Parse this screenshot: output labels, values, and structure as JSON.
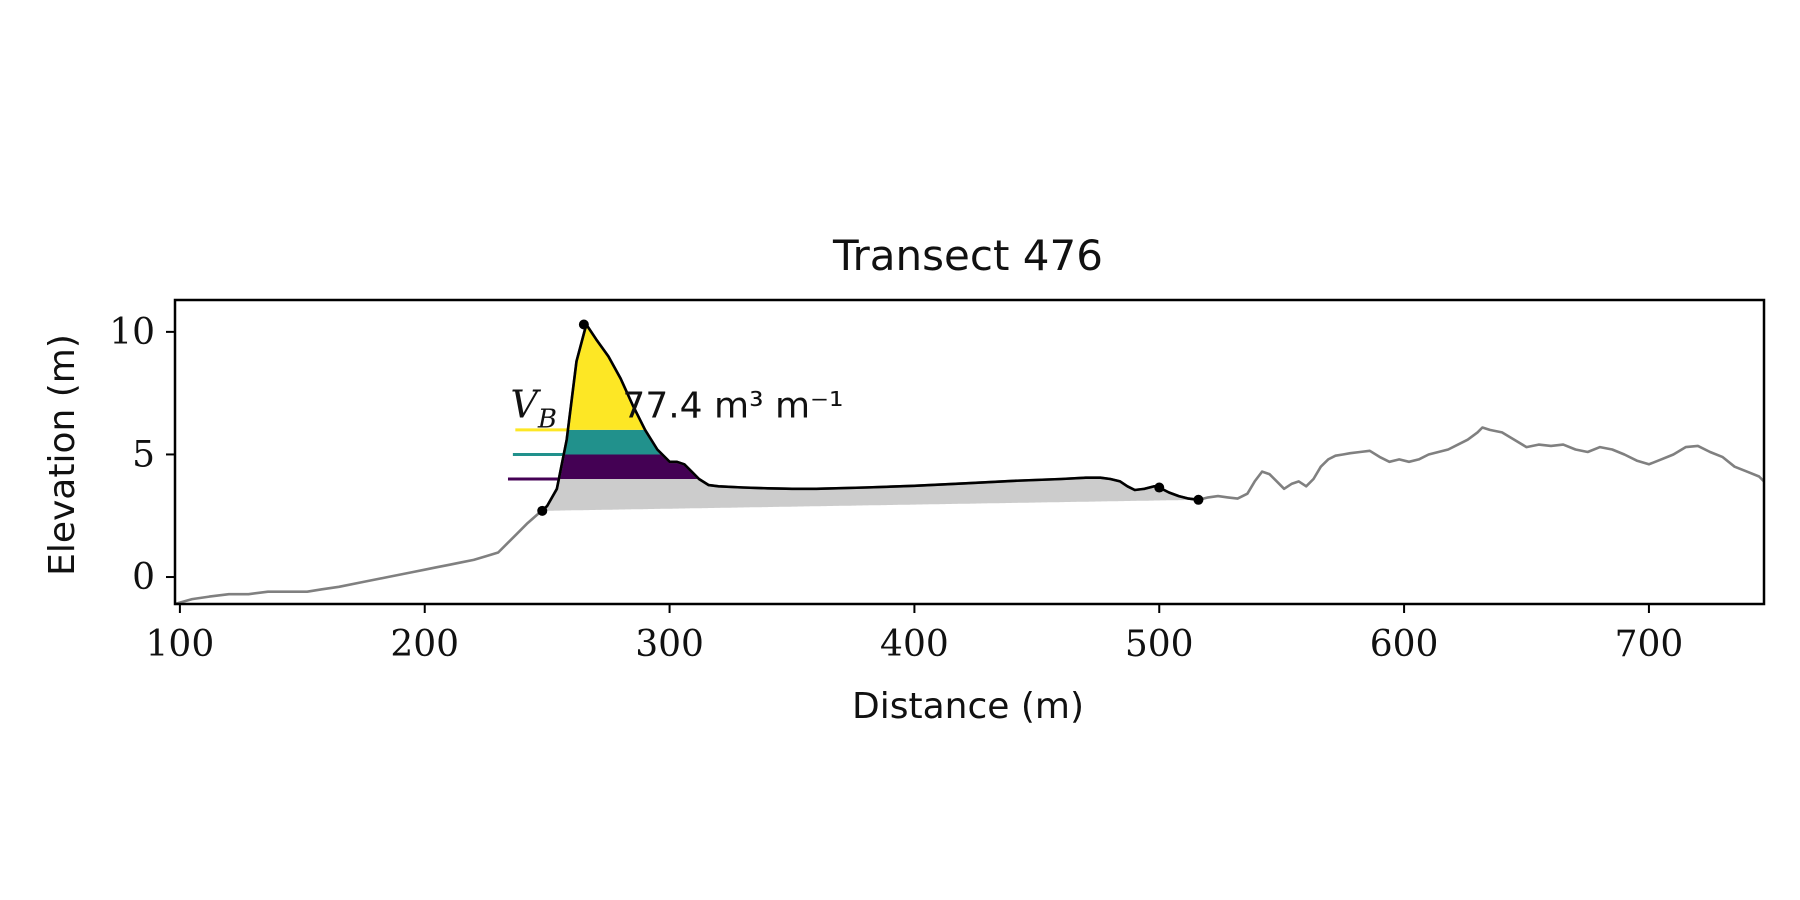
{
  "chart_data": {
    "type": "line",
    "title": "Transect 476",
    "xlabel": "Distance (m)",
    "ylabel": "Elevation (m)",
    "xlim": [
      98,
      747
    ],
    "ylim": [
      -1.1,
      11.3
    ],
    "xticks": [
      100,
      200,
      300,
      400,
      500,
      600,
      700
    ],
    "yticks": [
      0,
      5,
      10
    ],
    "grid": false,
    "colors": {
      "full_profile": "#808080",
      "dune_profile": "#000000",
      "base_fill": "#cccccc",
      "level_low": "#440154",
      "level_mid": "#21918c",
      "level_high": "#fde725"
    },
    "annotation": {
      "symbol": "V",
      "subscript": "B",
      "text": "77.4 m³ m⁻¹",
      "anchor": [
        235,
        6.5
      ]
    },
    "series": [
      {
        "role": "full_profile",
        "x": [
          98,
          105,
          112,
          120,
          128,
          136,
          144,
          152,
          158,
          165,
          175,
          185,
          195,
          200,
          205,
          210,
          215,
          220,
          225,
          230,
          234,
          238,
          242,
          246,
          250,
          254,
          258,
          262,
          266,
          270,
          275,
          280,
          285,
          290,
          295,
          300,
          303,
          306,
          309,
          312,
          316,
          320,
          330,
          340,
          350,
          360,
          380,
          400,
          420,
          440,
          460,
          470,
          476,
          480,
          484,
          487,
          490,
          494,
          498,
          500,
          504,
          508,
          512,
          516,
          520,
          524,
          528,
          532,
          536,
          539,
          542,
          545,
          548,
          551,
          554,
          557,
          560,
          563,
          566,
          569,
          572,
          575,
          578,
          582,
          586,
          590,
          594,
          598,
          602,
          606,
          610,
          614,
          618,
          622,
          626,
          630,
          632,
          635,
          640,
          645,
          650,
          655,
          660,
          665,
          670,
          675,
          680,
          685,
          690,
          695,
          700,
          705,
          710,
          715,
          720,
          725,
          730,
          735,
          740,
          745,
          747
        ],
        "y": [
          -1.1,
          -0.9,
          -0.8,
          -0.7,
          -0.7,
          -0.6,
          -0.6,
          -0.6,
          -0.5,
          -0.4,
          -0.2,
          0.0,
          0.2,
          0.3,
          0.4,
          0.5,
          0.6,
          0.7,
          0.85,
          1.0,
          1.4,
          1.8,
          2.2,
          2.55,
          2.9,
          3.6,
          5.6,
          8.8,
          10.3,
          9.7,
          9.0,
          8.1,
          7.0,
          6.0,
          5.2,
          4.7,
          4.7,
          4.6,
          4.3,
          4.0,
          3.75,
          3.7,
          3.65,
          3.62,
          3.6,
          3.6,
          3.65,
          3.72,
          3.82,
          3.92,
          4.0,
          4.05,
          4.05,
          4.0,
          3.9,
          3.7,
          3.55,
          3.6,
          3.7,
          3.65,
          3.45,
          3.3,
          3.2,
          3.15,
          3.25,
          3.3,
          3.25,
          3.2,
          3.4,
          3.9,
          4.3,
          4.2,
          3.9,
          3.6,
          3.8,
          3.9,
          3.7,
          4.0,
          4.5,
          4.8,
          4.95,
          5.0,
          5.05,
          5.1,
          5.15,
          4.9,
          4.7,
          4.8,
          4.7,
          4.8,
          5.0,
          5.1,
          5.2,
          5.4,
          5.6,
          5.9,
          6.1,
          6.0,
          5.9,
          5.6,
          5.3,
          5.4,
          5.35,
          5.4,
          5.2,
          5.1,
          5.3,
          5.2,
          5.0,
          4.75,
          4.6,
          4.8,
          5.0,
          5.3,
          5.35,
          5.1,
          4.9,
          4.5,
          4.3,
          4.1,
          3.9
        ]
      },
      {
        "role": "dune_profile",
        "x": [
          248,
          250,
          254,
          258,
          262,
          266,
          270,
          275,
          280,
          285,
          290,
          295,
          300,
          303,
          306,
          309,
          312,
          316,
          320,
          330,
          340,
          350,
          360,
          380,
          400,
          420,
          440,
          460,
          470,
          476,
          480,
          484,
          487,
          490,
          494,
          498,
          500,
          504,
          508,
          512,
          516
        ],
        "y": [
          2.7,
          2.9,
          3.6,
          5.6,
          8.8,
          10.3,
          9.7,
          9.0,
          8.1,
          7.0,
          6.0,
          5.2,
          4.7,
          4.7,
          4.6,
          4.3,
          4.0,
          3.75,
          3.7,
          3.65,
          3.62,
          3.6,
          3.6,
          3.65,
          3.72,
          3.82,
          3.92,
          4.0,
          4.05,
          4.05,
          4.0,
          3.9,
          3.7,
          3.55,
          3.6,
          3.7,
          3.65,
          3.45,
          3.3,
          3.2,
          3.15
        ]
      },
      {
        "role": "landmark_points",
        "x": [
          248,
          265,
          500,
          516
        ],
        "y": [
          2.7,
          10.3,
          3.65,
          3.15
        ]
      }
    ],
    "baseline": {
      "x": [
        248,
        516
      ],
      "y": [
        2.7,
        3.15
      ]
    },
    "levels": [
      {
        "role": "level_low",
        "y": 4.0,
        "x_start": 234
      },
      {
        "role": "level_mid",
        "y": 5.0,
        "x_start": 236
      },
      {
        "role": "level_high",
        "y": 6.0,
        "x_start": 237
      }
    ]
  }
}
